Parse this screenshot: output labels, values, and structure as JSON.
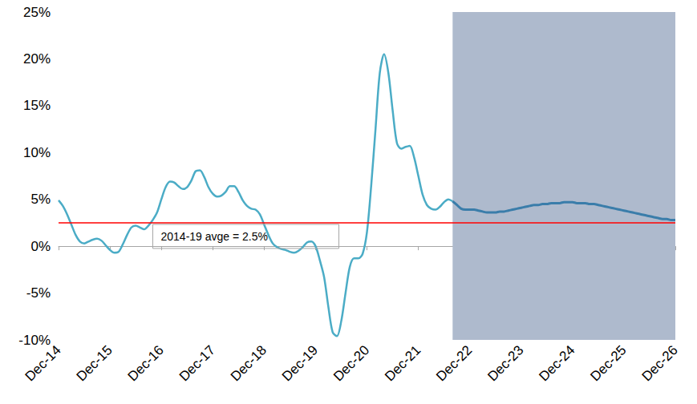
{
  "chart_data": {
    "type": "line",
    "categories": [
      "Dec-14",
      null,
      null,
      null,
      null,
      null,
      null,
      null,
      null,
      null,
      null,
      null,
      "Dec-15",
      null,
      null,
      null,
      null,
      null,
      null,
      null,
      null,
      null,
      null,
      null,
      "Dec-16",
      null,
      null,
      null,
      null,
      null,
      null,
      null,
      null,
      null,
      null,
      null,
      "Dec-17",
      null,
      null,
      null,
      null,
      null,
      null,
      null,
      null,
      null,
      null,
      null,
      "Dec-18",
      null,
      null,
      null,
      null,
      null,
      null,
      null,
      null,
      null,
      null,
      null,
      "Dec-19",
      null,
      null,
      null,
      null,
      null,
      null,
      null,
      null,
      null,
      null,
      null,
      "Dec-20",
      null,
      null,
      null,
      null,
      null,
      null,
      null,
      null,
      null,
      null,
      null,
      "Dec-21",
      null,
      null,
      null,
      null,
      null,
      null,
      null,
      null,
      null,
      null,
      null,
      "Dec-22",
      null,
      null,
      null,
      null,
      null,
      null,
      null,
      null,
      null,
      null,
      null,
      "Dec-23",
      null,
      null,
      null,
      null,
      null,
      null,
      null,
      null,
      null,
      null,
      null,
      "Dec-24",
      null,
      null,
      null,
      null,
      null,
      null,
      null,
      null,
      null,
      null,
      null,
      "Dec-25",
      null,
      null,
      null,
      null,
      null,
      null,
      null,
      null,
      null,
      null,
      null,
      "Dec-26"
    ],
    "series": [
      {
        "color": "#4bacc6",
        "values": [
          4.9,
          4.3,
          3.4,
          2.3,
          1.2,
          0.5,
          0.3,
          0.5,
          0.7,
          0.8,
          0.6,
          0.1,
          -0.4,
          -0.7,
          -0.6,
          0.2,
          1.2,
          2.0,
          2.2,
          2.0,
          1.8,
          2.2,
          2.8,
          3.6,
          5.0,
          6.3,
          6.9,
          6.8,
          6.4,
          6.1,
          6.3,
          7.0,
          8.0,
          8.1,
          7.4,
          6.3,
          5.6,
          5.3,
          5.4,
          5.8,
          6.4,
          6.4,
          5.8,
          4.9,
          4.3,
          4.0,
          3.9,
          3.4,
          2.3,
          1.2,
          0.3,
          -0.1,
          -0.3,
          -0.4,
          -0.6,
          -0.7,
          -0.5,
          -0.1,
          0.4,
          0.5,
          0.0,
          -1.5,
          -3.3,
          -6.5,
          -9.2,
          -9.6,
          -8.0,
          -5.0,
          -2.2,
          -1.3,
          -1.3,
          -0.8,
          1.5,
          6.5,
          12.5,
          18.5,
          20.5,
          18.5,
          14.5,
          11.0,
          10.4,
          10.6,
          10.7,
          9.5,
          7.5,
          5.5,
          4.4,
          4.0,
          3.9,
          4.2,
          4.7,
          5.0,
          4.8,
          null,
          null,
          null,
          null,
          null,
          null,
          null,
          null,
          null,
          null,
          null,
          null,
          null,
          null,
          null,
          null,
          null,
          null,
          null,
          null,
          null,
          null,
          null,
          null,
          null,
          null,
          null,
          null,
          null,
          null,
          null,
          null,
          null,
          null,
          null,
          null,
          null,
          null,
          null,
          null,
          null,
          null,
          null,
          null,
          null,
          null,
          null,
          null,
          null,
          null,
          null,
          null
        ]
      },
      {
        "color": "#3a7daa",
        "values": [
          null,
          null,
          null,
          null,
          null,
          null,
          null,
          null,
          null,
          null,
          null,
          null,
          null,
          null,
          null,
          null,
          null,
          null,
          null,
          null,
          null,
          null,
          null,
          null,
          null,
          null,
          null,
          null,
          null,
          null,
          null,
          null,
          null,
          null,
          null,
          null,
          null,
          null,
          null,
          null,
          null,
          null,
          null,
          null,
          null,
          null,
          null,
          null,
          null,
          null,
          null,
          null,
          null,
          null,
          null,
          null,
          null,
          null,
          null,
          null,
          null,
          null,
          null,
          null,
          null,
          null,
          null,
          null,
          null,
          null,
          null,
          null,
          null,
          null,
          null,
          null,
          null,
          null,
          null,
          null,
          null,
          null,
          null,
          null,
          null,
          null,
          null,
          null,
          null,
          null,
          null,
          null,
          4.8,
          4.4,
          4.0,
          3.9,
          3.9,
          3.9,
          3.8,
          3.7,
          3.6,
          3.6,
          3.6,
          3.7,
          3.7,
          3.8,
          3.9,
          4.0,
          4.1,
          4.2,
          4.3,
          4.4,
          4.4,
          4.5,
          4.5,
          4.6,
          4.6,
          4.6,
          4.7,
          4.7,
          4.7,
          4.6,
          4.6,
          4.6,
          4.5,
          4.5,
          4.4,
          4.3,
          4.2,
          4.1,
          4.0,
          3.9,
          3.8,
          3.7,
          3.6,
          3.5,
          3.4,
          3.3,
          3.2,
          3.1,
          3.0,
          2.9,
          2.9,
          2.8,
          2.8
        ]
      }
    ],
    "reference_line": {
      "value": 2.5,
      "label": "2014-19 avge = 2.5%",
      "color": "#ff0000"
    },
    "ylim": [
      -10,
      25
    ],
    "yticks": [
      {
        "value": -10,
        "label": "-10%"
      },
      {
        "value": -5,
        "label": "-5%"
      },
      {
        "value": 0,
        "label": "0%"
      },
      {
        "value": 5,
        "label": "5%"
      },
      {
        "value": 10,
        "label": "10%"
      },
      {
        "value": 15,
        "label": "15%"
      },
      {
        "value": 20,
        "label": "20%"
      },
      {
        "value": 25,
        "label": "25%"
      }
    ],
    "grid": false
  }
}
